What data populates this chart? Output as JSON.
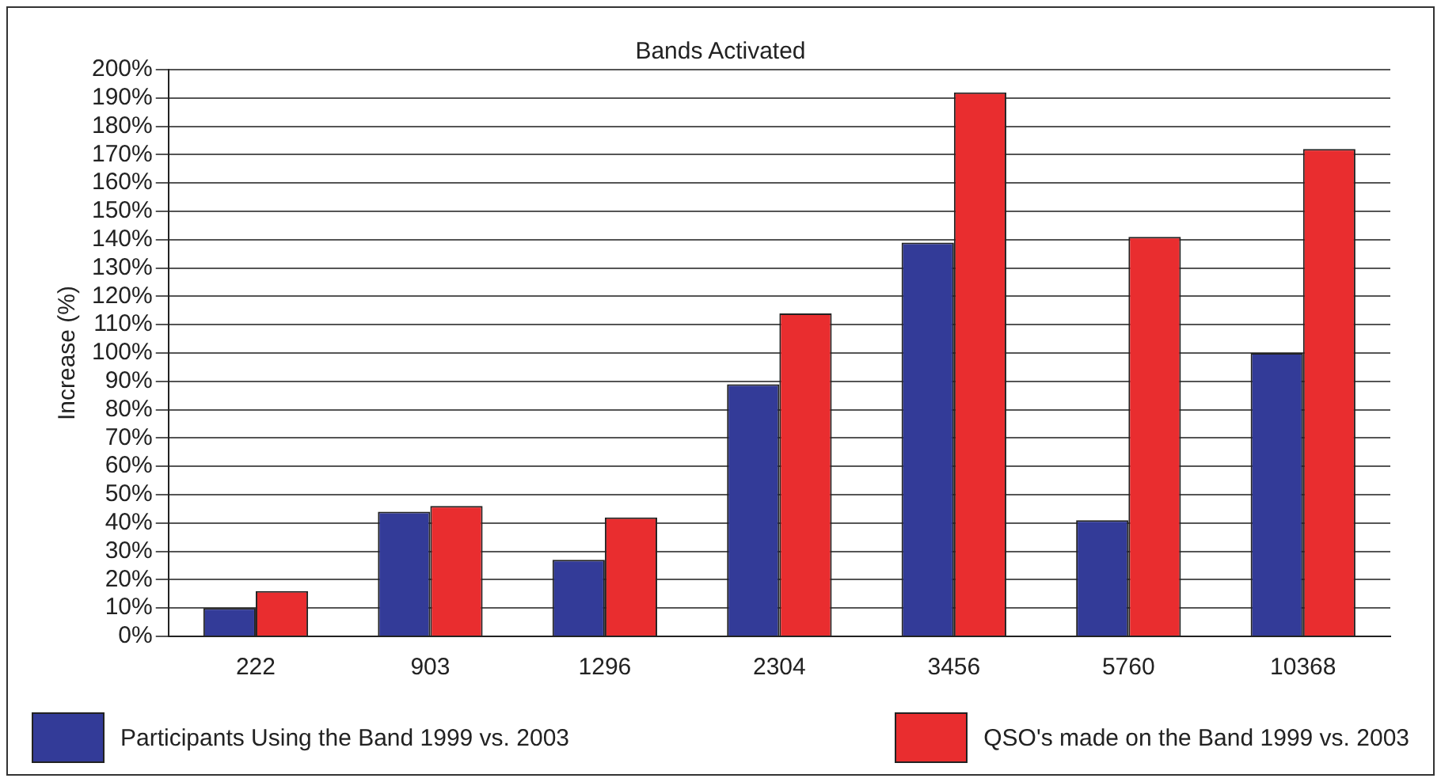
{
  "chart_data": {
    "type": "bar",
    "title": "Bands Activated",
    "ylabel": "Increase (%)",
    "categories": [
      "222",
      "903",
      "1296",
      "2304",
      "3456",
      "5760",
      "10368"
    ],
    "series": [
      {
        "name": "Participants Using the Band 1999 vs. 2003",
        "color": "#333b98",
        "values": [
          10,
          44,
          27,
          89,
          139,
          41,
          100
        ]
      },
      {
        "name": "QSO's made on the Band 1999 vs. 2003",
        "color": "#e92d2f",
        "values": [
          16,
          46,
          42,
          114,
          192,
          141,
          172
        ]
      }
    ],
    "ylim": [
      0,
      200
    ],
    "yticks": [
      {
        "value": 0,
        "label": "0%"
      },
      {
        "value": 10,
        "label": "10%"
      },
      {
        "value": 20,
        "label": "20%"
      },
      {
        "value": 30,
        "label": "30%"
      },
      {
        "value": 40,
        "label": "40%"
      },
      {
        "value": 50,
        "label": "50%"
      },
      {
        "value": 60,
        "label": "60%"
      },
      {
        "value": 70,
        "label": "70%"
      },
      {
        "value": 80,
        "label": "80%"
      },
      {
        "value": 90,
        "label": "90%"
      },
      {
        "value": 100,
        "label": "100%"
      },
      {
        "value": 110,
        "label": "110%"
      },
      {
        "value": 120,
        "label": "120%"
      },
      {
        "value": 130,
        "label": "130%"
      },
      {
        "value": 140,
        "label": "140%"
      },
      {
        "value": 150,
        "label": "150%"
      },
      {
        "value": 160,
        "label": "160%"
      },
      {
        "value": 170,
        "label": "170%"
      },
      {
        "value": 180,
        "label": "180%"
      },
      {
        "value": 190,
        "label": "190%"
      },
      {
        "value": 200,
        "label": "200%"
      }
    ],
    "grid": "y",
    "legend": "bottom"
  }
}
